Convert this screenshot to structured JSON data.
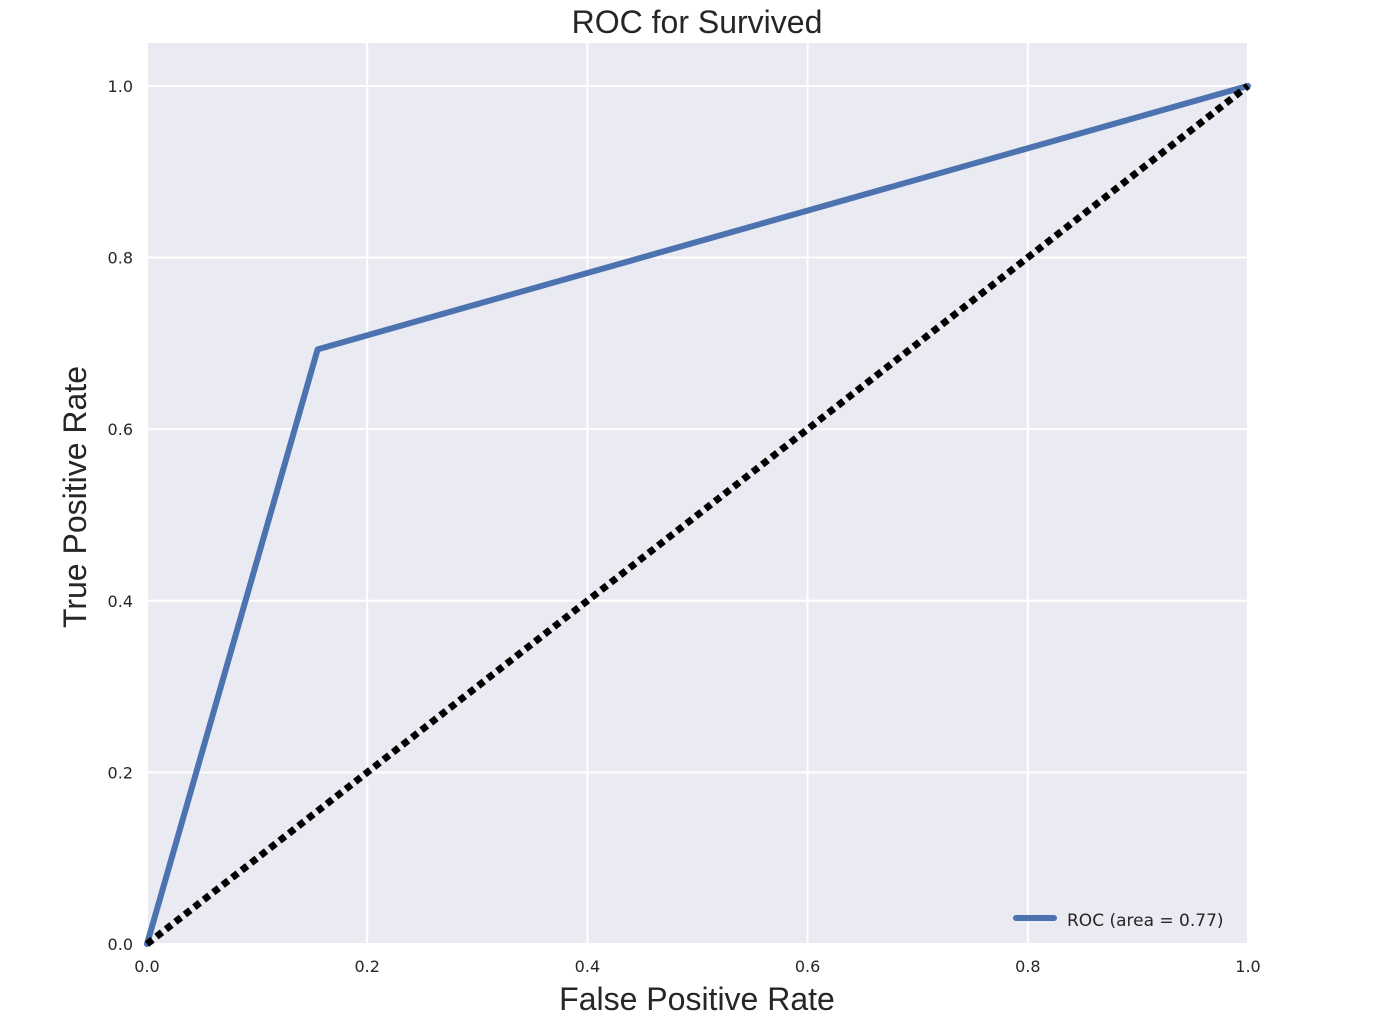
{
  "chart_data": {
    "type": "line",
    "title": "ROC for Survived",
    "xlabel": "False Positive Rate",
    "ylabel": "True Positive Rate",
    "xlim": [
      0.0,
      1.0
    ],
    "ylim": [
      0.0,
      1.05
    ],
    "xticks": [
      0.0,
      0.2,
      0.4,
      0.6,
      0.8,
      1.0
    ],
    "yticks": [
      0.0,
      0.2,
      0.4,
      0.6,
      0.8,
      1.0
    ],
    "xtick_labels": [
      "0.0",
      "0.2",
      "0.4",
      "0.6",
      "0.8",
      "1.0"
    ],
    "ytick_labels": [
      "0.0",
      "0.2",
      "0.4",
      "0.6",
      "0.8",
      "1.0"
    ],
    "grid": true,
    "legend_position": "lower-right",
    "series": [
      {
        "name": "ROC (area = 0.77)",
        "x": [
          0.0,
          0.155,
          1.0
        ],
        "y": [
          0.0,
          0.693,
          1.0
        ],
        "color": "#4c72b0",
        "style": "solid"
      },
      {
        "x": [
          0.0,
          1.0
        ],
        "y": [
          0.0,
          1.0
        ],
        "color": "#000000",
        "style": "dotted"
      }
    ],
    "colors": {
      "plot_background": "#eaeaf2",
      "grid": "#ffffff"
    }
  }
}
